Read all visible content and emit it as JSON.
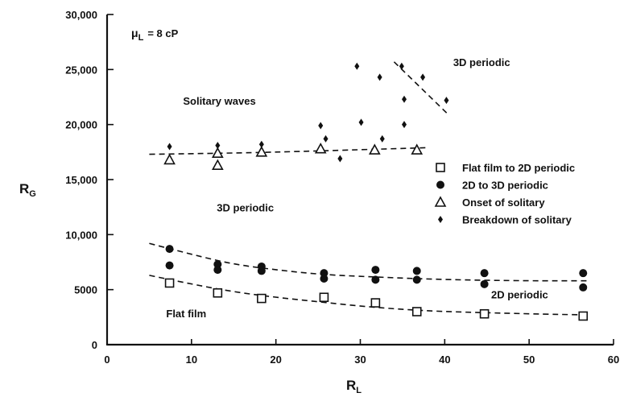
{
  "chart_data": {
    "type": "scatter",
    "xlabel": "R",
    "xlabel_sub": "L",
    "ylabel": "R",
    "ylabel_sub": "G",
    "xlim": [
      0,
      60
    ],
    "ylim": [
      0,
      30000
    ],
    "x_ticks": [
      "0",
      "10",
      "20",
      "30",
      "40",
      "50",
      "60"
    ],
    "y_ticks": [
      "0",
      "5000",
      "10,000",
      "15,000",
      "20,000",
      "25,000",
      "30,000"
    ],
    "x_tick_values": [
      0,
      10,
      20,
      30,
      40,
      50,
      60
    ],
    "y_tick_values": [
      0,
      5000,
      10000,
      15000,
      20000,
      25000,
      30000
    ],
    "grid": false,
    "legend_position": "right",
    "viscosity_label": {
      "mu": "μ",
      "sub": "L",
      "rest": "= 8 cP"
    },
    "annotations": [
      {
        "text": "Solitary waves",
        "x": 9,
        "y": 21800
      },
      {
        "text": "3D periodic",
        "x": 41,
        "y": 25300
      },
      {
        "text": "3D periodic",
        "x": 13,
        "y": 12100
      },
      {
        "text": "2D periodic",
        "x": 45.5,
        "y": 4200
      },
      {
        "text": "Flat film",
        "x": 7,
        "y": 2500
      }
    ],
    "series": [
      {
        "name": "Flat film to 2D periodic",
        "marker": "open-square",
        "points": [
          [
            7.4,
            5600
          ],
          [
            13.1,
            4700
          ],
          [
            18.3,
            4200
          ],
          [
            25.7,
            4300
          ],
          [
            31.8,
            3800
          ],
          [
            36.7,
            3000
          ],
          [
            44.7,
            2800
          ],
          [
            56.4,
            2600
          ]
        ]
      },
      {
        "name": "2D to 3D periodic",
        "marker": "filled-circle",
        "points": [
          [
            7.4,
            8700
          ],
          [
            7.4,
            7200
          ],
          [
            13.1,
            7300
          ],
          [
            13.1,
            6800
          ],
          [
            18.3,
            7100
          ],
          [
            18.3,
            6700
          ],
          [
            25.7,
            6500
          ],
          [
            25.7,
            6000
          ],
          [
            31.8,
            6800
          ],
          [
            31.8,
            5900
          ],
          [
            36.7,
            6700
          ],
          [
            36.7,
            5900
          ],
          [
            44.7,
            6500
          ],
          [
            44.7,
            5500
          ],
          [
            56.4,
            6500
          ],
          [
            56.4,
            5200
          ]
        ]
      },
      {
        "name": "Onset of solitary",
        "marker": "open-triangle",
        "points": [
          [
            7.4,
            16800
          ],
          [
            13.1,
            17400
          ],
          [
            13.1,
            16300
          ],
          [
            18.3,
            17500
          ],
          [
            25.3,
            17800
          ],
          [
            31.7,
            17700
          ],
          [
            36.7,
            17700
          ]
        ]
      },
      {
        "name": "Breakdown of solitary",
        "marker": "small-diamond",
        "points": [
          [
            7.4,
            18000
          ],
          [
            13.1,
            18100
          ],
          [
            18.3,
            18200
          ],
          [
            25.3,
            19900
          ],
          [
            25.9,
            18700
          ],
          [
            27.6,
            16900
          ],
          [
            29.6,
            25300
          ],
          [
            30.1,
            20200
          ],
          [
            32.3,
            24300
          ],
          [
            32.6,
            18700
          ],
          [
            34.9,
            25300
          ],
          [
            35.2,
            22300
          ],
          [
            35.2,
            20000
          ],
          [
            37.4,
            24300
          ],
          [
            40.2,
            22200
          ]
        ]
      }
    ],
    "fit_lines": [
      {
        "points": [
          [
            5,
            17300
          ],
          [
            15,
            17400
          ],
          [
            25,
            17600
          ],
          [
            38,
            17900
          ]
        ]
      },
      {
        "points": [
          [
            5,
            9200
          ],
          [
            10,
            8200
          ],
          [
            15,
            7300
          ],
          [
            20,
            6800
          ],
          [
            25,
            6400
          ],
          [
            30,
            6200
          ],
          [
            40,
            5900
          ],
          [
            50,
            5800
          ],
          [
            57,
            5800
          ]
        ]
      },
      {
        "points": [
          [
            5,
            6300
          ],
          [
            10,
            5500
          ],
          [
            15,
            4800
          ],
          [
            20,
            4300
          ],
          [
            25,
            3900
          ],
          [
            30,
            3500
          ],
          [
            35,
            3200
          ],
          [
            40,
            3000
          ],
          [
            50,
            2800
          ],
          [
            57,
            2700
          ]
        ]
      },
      {
        "points": [
          [
            34,
            25700
          ],
          [
            40.3,
            21000
          ]
        ]
      }
    ]
  }
}
